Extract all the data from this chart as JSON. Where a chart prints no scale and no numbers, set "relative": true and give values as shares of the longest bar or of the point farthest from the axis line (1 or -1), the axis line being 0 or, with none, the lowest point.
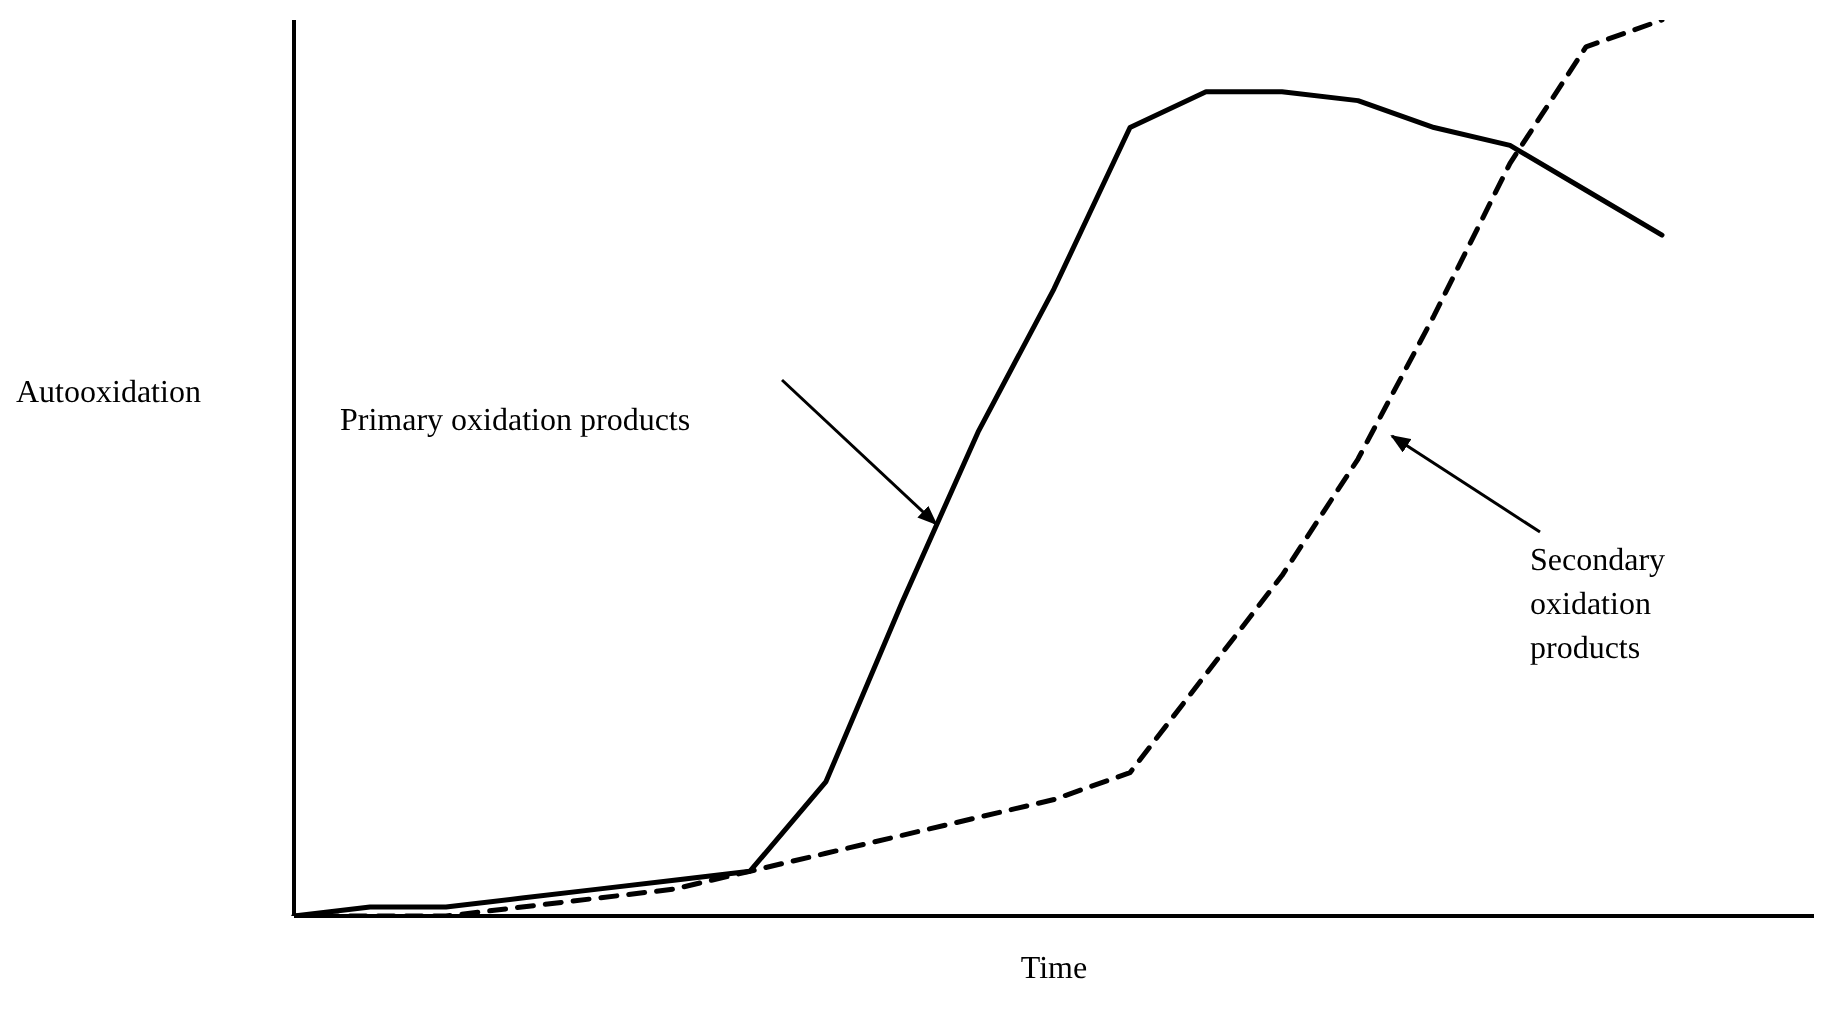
{
  "chart_data": {
    "type": "line",
    "relative": true,
    "xlabel": "Time",
    "ylabel": "Autooxidation",
    "categories": [
      null,
      null,
      null,
      null,
      null,
      null,
      null,
      null,
      null,
      null,
      null,
      null,
      null,
      null,
      null,
      null,
      null,
      null,
      null,
      null,
      null
    ],
    "series": [
      {
        "color": "#000000",
        "line_style": "solid",
        "values": [
          0,
          0.01,
          0.01,
          0.02,
          0.03,
          0.04,
          0.05,
          0.15,
          0.35,
          0.54,
          0.7,
          0.88,
          0.92,
          0.92,
          0.91,
          0.88,
          0.86,
          0.81,
          0.76,
          null,
          null
        ]
      },
      {
        "color": "#000000",
        "line_style": "dashed",
        "values": [
          0,
          0,
          0,
          0.01,
          0.02,
          0.03,
          0.05,
          0.07,
          0.09,
          0.11,
          0.13,
          0.16,
          0.27,
          0.38,
          0.51,
          0.67,
          0.84,
          0.97,
          1,
          null,
          null
        ]
      }
    ],
    "annotations": [
      "Primary oxidation products",
      "Secondary oxidation products"
    ],
    "grid": false,
    "legend": false,
    "marker": "none"
  }
}
